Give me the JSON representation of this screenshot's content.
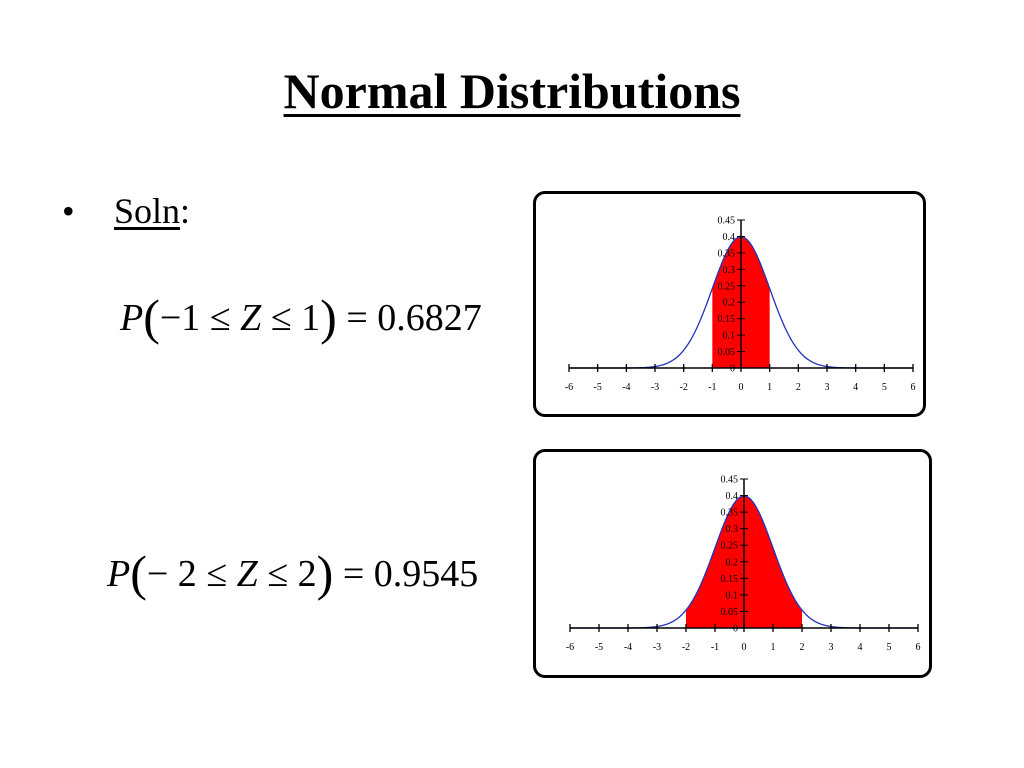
{
  "title": "Normal Distributions",
  "bullet": {
    "symbol": "•",
    "label": "Soln",
    "suffix": ":"
  },
  "equations": [
    {
      "p": "P",
      "lparen": "(",
      "lower": "−1",
      "le1": "≤",
      "z": "Z",
      "le2": "≤",
      "upper": "1",
      "rparen": ")",
      "eq": "=",
      "value": "0.6827"
    },
    {
      "p": "P",
      "lparen": "(",
      "lower": "− 2",
      "le1": "≤",
      "z": "Z",
      "le2": "≤",
      "upper": "2",
      "rparen": ")",
      "eq": "=",
      "value": "0.9545"
    }
  ],
  "colors": {
    "curve": "#2233bb",
    "fill": "#ff0000",
    "axis": "#000000"
  },
  "chart_data": [
    {
      "type": "area",
      "title": "",
      "xlabel": "",
      "ylabel": "",
      "xlim": [
        -6,
        6
      ],
      "ylim": [
        0,
        0.45
      ],
      "x_ticks": [
        "-6",
        "-5",
        "-4",
        "-3",
        "-2",
        "-1",
        "0",
        "1",
        "2",
        "3",
        "4",
        "5",
        "6"
      ],
      "y_ticks": [
        "0",
        "0.05",
        "0.1",
        "0.15",
        "0.2",
        "0.25",
        "0.3",
        "0.35",
        "0.4",
        "0.45"
      ],
      "series": [
        {
          "kind": "line",
          "function": "standard normal density",
          "x_range": [
            -6,
            6
          ]
        },
        {
          "kind": "shaded",
          "x_range": [
            -1,
            1
          ]
        }
      ],
      "grid": false
    },
    {
      "type": "area",
      "title": "",
      "xlabel": "",
      "ylabel": "",
      "xlim": [
        -6,
        6
      ],
      "ylim": [
        0,
        0.45
      ],
      "x_ticks": [
        "-6",
        "-5",
        "-4",
        "-3",
        "-2",
        "-1",
        "0",
        "1",
        "2",
        "3",
        "4",
        "5",
        "6"
      ],
      "y_ticks": [
        "0",
        "0.05",
        "0.1",
        "0.15",
        "0.2",
        "0.25",
        "0.3",
        "0.35",
        "0.4",
        "0.45"
      ],
      "series": [
        {
          "kind": "line",
          "function": "standard normal density",
          "x_range": [
            -6,
            6
          ]
        },
        {
          "kind": "shaded",
          "x_range": [
            -2,
            2
          ]
        }
      ],
      "grid": false
    }
  ]
}
